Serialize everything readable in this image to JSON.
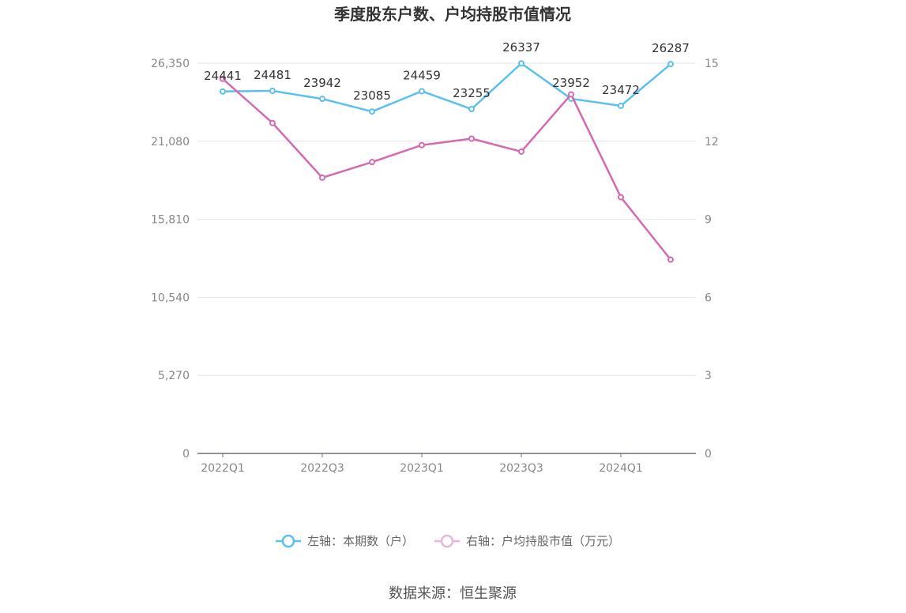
{
  "chart_data": {
    "type": "line",
    "title": "季度股东户数、户均持股市值情况",
    "categories": [
      "2022Q1",
      "2022Q2",
      "2022Q3",
      "2022Q4",
      "2023Q1",
      "2023Q2",
      "2023Q3",
      "2023Q4",
      "2024Q1",
      "2024Q2"
    ],
    "x_tick_labels": [
      "2022Q1",
      "2022Q3",
      "2023Q1",
      "2023Q3",
      "2024Q1"
    ],
    "left_axis": {
      "ylim": [
        0,
        26350
      ],
      "ticks": [
        "0",
        "5,270",
        "10,540",
        "15,810",
        "21,080",
        "26,350"
      ]
    },
    "right_axis": {
      "ylim": [
        0,
        15
      ],
      "ticks": [
        "0",
        "3",
        "6",
        "9",
        "12",
        "15"
      ]
    },
    "grid": true,
    "legend_placement": "bottom",
    "series": [
      {
        "name": "左轴：本期数（户）",
        "axis": "left",
        "color": "#5bc0ee",
        "values": [
          24441,
          24481,
          23942,
          23085,
          24459,
          23255,
          26337,
          23952,
          23472,
          26287
        ],
        "labels": [
          "24441",
          "24481",
          "23942",
          "23085",
          "24459",
          "23255",
          "26337",
          "23952",
          "23472",
          "26287"
        ]
      },
      {
        "name": "右轴：户均持股市值（万元）",
        "axis": "right",
        "color": "#d46aaf",
        "values": [
          14.4,
          12.7,
          10.6,
          11.2,
          11.85,
          12.1,
          11.6,
          13.8,
          9.85,
          7.45
        ]
      }
    ]
  },
  "source": "数据来源：恒生聚源"
}
